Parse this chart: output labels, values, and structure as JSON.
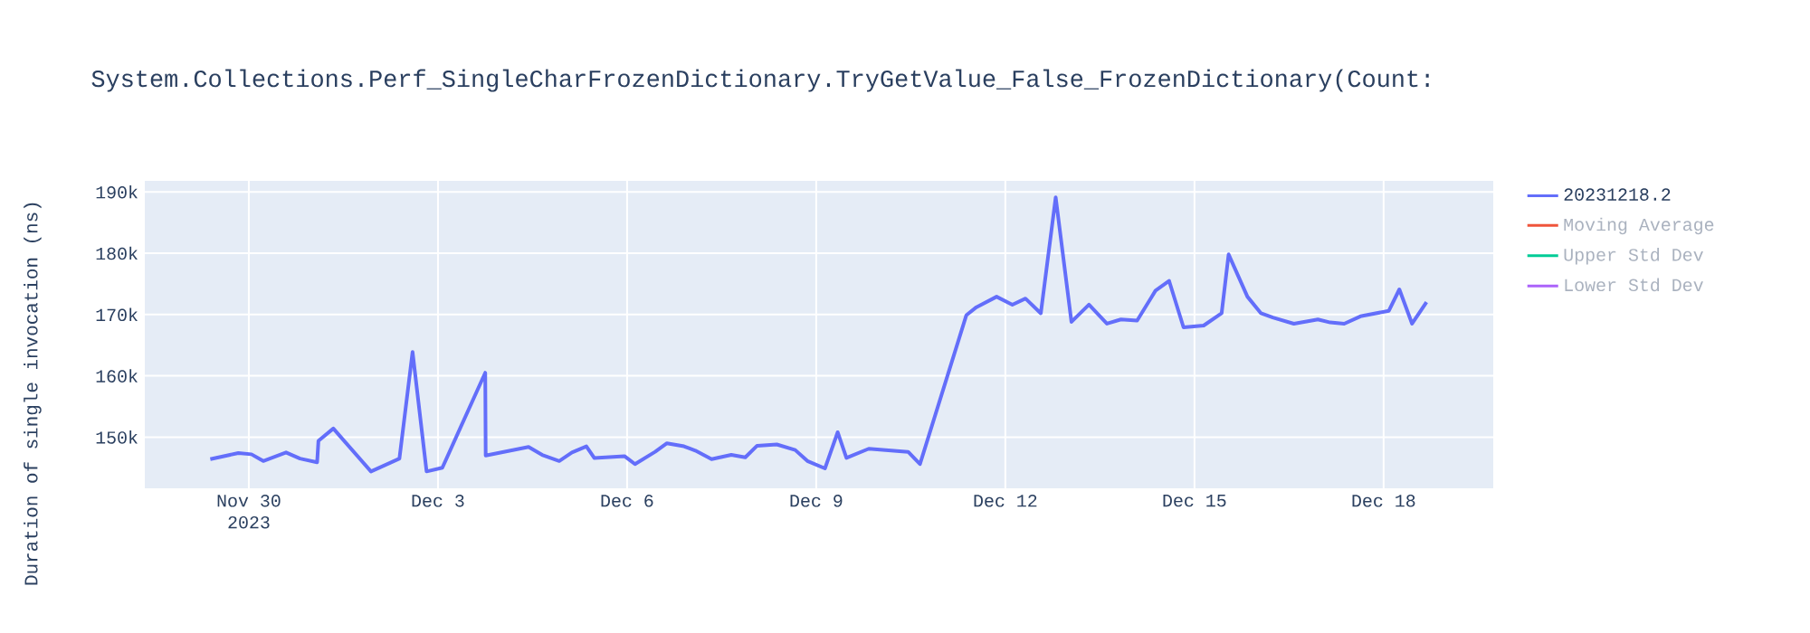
{
  "chart_data": {
    "type": "line",
    "title": "System.Collections.Perf_SingleCharFrozenDictionary.TryGetValue_False_FrozenDictionary(Count:",
    "ylabel": "Duration of single invocation (ns)",
    "xlim": [
      "2023-11-28T08:24",
      "2023-12-19T17:45"
    ],
    "xticks": [
      {
        "value": "2023-11-30",
        "label": "Nov 30\n2023"
      },
      {
        "value": "2023-12-03",
        "label": "Dec 3"
      },
      {
        "value": "2023-12-06",
        "label": "Dec 6"
      },
      {
        "value": "2023-12-09",
        "label": "Dec 9"
      },
      {
        "value": "2023-12-12",
        "label": "Dec 12"
      },
      {
        "value": "2023-12-15",
        "label": "Dec 15"
      },
      {
        "value": "2023-12-18",
        "label": "Dec 18"
      }
    ],
    "ylim": [
      141650,
      191800
    ],
    "yticks": [
      {
        "value": 150000,
        "label": "150k"
      },
      {
        "value": 160000,
        "label": "160k"
      },
      {
        "value": 170000,
        "label": "170k"
      },
      {
        "value": 180000,
        "label": "180k"
      },
      {
        "value": 190000,
        "label": "190k"
      }
    ],
    "grid": true,
    "legend": "right",
    "x": [
      "2023-11-29T09:20",
      "2023-11-29T20:00",
      "2023-11-30T01:00",
      "2023-11-30T05:30",
      "2023-11-30T14:10",
      "2023-11-30T19:30",
      "2023-12-01T02:00",
      "2023-12-01T02:30",
      "2023-12-01T08:10",
      "2023-12-01T22:30",
      "2023-12-02T09:20",
      "2023-12-02T14:20",
      "2023-12-02T19:40",
      "2023-12-03T01:40",
      "2023-12-03T18:00",
      "2023-12-03T18:10",
      "2023-12-04T10:30",
      "2023-12-04T15:40",
      "2023-12-04T22:10",
      "2023-12-05T03:00",
      "2023-12-05T08:30",
      "2023-12-05T11:30",
      "2023-12-05T23:00",
      "2023-12-06T03:00",
      "2023-12-06T10:40",
      "2023-12-06T15:10",
      "2023-12-06T21:40",
      "2023-12-07T02:00",
      "2023-12-07T08:10",
      "2023-12-07T15:40",
      "2023-12-07T21:00",
      "2023-12-08T01:30",
      "2023-12-08T09:00",
      "2023-12-08T16:00",
      "2023-12-08T20:40",
      "2023-12-09T03:20",
      "2023-12-09T08:10",
      "2023-12-09T11:30",
      "2023-12-09T20:00",
      "2023-12-10T11:00",
      "2023-12-10T15:30",
      "2023-12-11T09:10",
      "2023-12-11T13:00",
      "2023-12-11T20:40",
      "2023-12-12T02:40",
      "2023-12-12T07:40",
      "2023-12-12T13:30",
      "2023-12-12T19:10",
      "2023-12-13T01:10",
      "2023-12-13T07:50",
      "2023-12-13T14:40",
      "2023-12-13T20:00",
      "2023-12-14T02:10",
      "2023-12-14T09:10",
      "2023-12-14T14:20",
      "2023-12-14T19:50",
      "2023-12-15T03:30",
      "2023-12-15T10:20",
      "2023-12-15T13:00",
      "2023-12-15T20:10",
      "2023-12-16T01:20",
      "2023-12-16T05:50",
      "2023-12-16T13:50",
      "2023-12-16T23:00",
      "2023-12-17T03:40",
      "2023-12-17T09:00",
      "2023-12-17T15:10",
      "2023-12-18T02:00",
      "2023-12-18T06:00",
      "2023-12-18T10:50",
      "2023-12-18T16:20"
    ],
    "series": [
      {
        "name": "20231218.2",
        "color": "#636efa",
        "values": [
          146400,
          147400,
          147200,
          146100,
          147500,
          146500,
          145900,
          149400,
          151400,
          144400,
          146500,
          163900,
          144400,
          145000,
          160500,
          147000,
          148400,
          147100,
          146100,
          147500,
          148500,
          146600,
          146900,
          145600,
          147600,
          149000,
          148500,
          147800,
          146400,
          147100,
          146700,
          148600,
          148800,
          147900,
          146100,
          144900,
          150800,
          146600,
          148100,
          147600,
          145600,
          169900,
          171200,
          172900,
          171600,
          172600,
          170200,
          189100,
          168800,
          171600,
          168500,
          169200,
          169000,
          173900,
          175500,
          167900,
          168200,
          170200,
          179800,
          172900,
          170200,
          169500,
          168500,
          169200,
          168700,
          168500,
          169700,
          170600,
          174100,
          168500,
          172000
        ]
      },
      {
        "name": "Moving Average",
        "color": "#ef553b",
        "values": [
          null,
          null,
          null,
          null,
          null,
          null,
          null,
          null,
          null,
          null,
          null,
          null,
          null,
          null,
          null,
          null,
          null,
          null,
          null,
          null,
          null,
          null,
          null,
          null,
          null,
          null,
          null,
          null,
          null,
          null,
          null,
          null,
          null,
          null,
          null,
          null,
          null,
          null,
          null,
          null,
          null,
          null,
          null,
          null,
          null,
          null,
          null,
          null,
          null,
          null,
          null,
          null,
          null,
          null,
          null,
          null,
          null,
          null,
          null,
          null,
          null,
          null,
          null,
          null,
          null,
          null,
          null,
          null,
          null,
          null,
          null
        ]
      },
      {
        "name": "Upper Std Dev",
        "color": "#00cc96",
        "values": [
          null,
          null,
          null,
          null,
          null,
          null,
          null,
          null,
          null,
          null,
          null,
          null,
          null,
          null,
          null,
          null,
          null,
          null,
          null,
          null,
          null,
          null,
          null,
          null,
          null,
          null,
          null,
          null,
          null,
          null,
          null,
          null,
          null,
          null,
          null,
          null,
          null,
          null,
          null,
          null,
          null,
          null,
          null,
          null,
          null,
          null,
          null,
          null,
          null,
          null,
          null,
          null,
          null,
          null,
          null,
          null,
          null,
          null,
          null,
          null,
          null,
          null,
          null,
          null,
          null,
          null,
          null,
          null,
          null,
          null,
          null
        ]
      },
      {
        "name": "Lower Std Dev",
        "color": "#ab63fa",
        "values": [
          null,
          null,
          null,
          null,
          null,
          null,
          null,
          null,
          null,
          null,
          null,
          null,
          null,
          null,
          null,
          null,
          null,
          null,
          null,
          null,
          null,
          null,
          null,
          null,
          null,
          null,
          null,
          null,
          null,
          null,
          null,
          null,
          null,
          null,
          null,
          null,
          null,
          null,
          null,
          null,
          null,
          null,
          null,
          null,
          null,
          null,
          null,
          null,
          null,
          null,
          null,
          null,
          null,
          null,
          null,
          null,
          null,
          null,
          null,
          null,
          null,
          null,
          null,
          null,
          null,
          null,
          null,
          null,
          null,
          null,
          null
        ]
      }
    ]
  }
}
